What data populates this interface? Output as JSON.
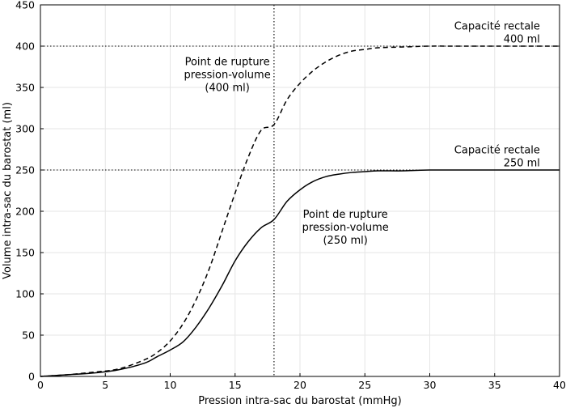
{
  "chart_data": {
    "type": "line",
    "xlabel": "Pression intra-sac du barostat (mmHg)",
    "ylabel": "Volume intra-sac du barostat (ml)",
    "xlim": [
      0,
      40
    ],
    "ylim": [
      0,
      450
    ],
    "xticks": [
      0,
      5,
      10,
      15,
      20,
      25,
      30,
      35,
      40
    ],
    "yticks": [
      0,
      50,
      100,
      150,
      200,
      250,
      300,
      350,
      400,
      450
    ],
    "grid": true,
    "series": [
      {
        "style": "dashed",
        "color": "#000000",
        "x": [
          0,
          2,
          4,
          6,
          8,
          9,
          10,
          11,
          12,
          13,
          14,
          15,
          16,
          17,
          18,
          19,
          20,
          21,
          22,
          23,
          24,
          25,
          26,
          28,
          30,
          32,
          35,
          40
        ],
        "y": [
          0,
          2,
          5,
          9,
          20,
          29,
          43,
          64,
          93,
          130,
          176,
          222,
          265,
          298,
          305,
          335,
          355,
          370,
          381,
          389,
          394,
          396,
          398,
          399,
          400,
          400,
          400,
          400
        ]
      },
      {
        "style": "solid",
        "color": "#000000",
        "x": [
          0,
          2,
          4,
          6,
          8,
          9,
          10,
          11,
          12,
          13,
          14,
          15,
          16,
          17,
          18,
          19,
          20,
          21,
          22,
          23,
          24,
          25,
          26,
          28,
          30,
          35,
          40
        ],
        "y": [
          0,
          2,
          4,
          8,
          16,
          24,
          32,
          42,
          60,
          83,
          110,
          140,
          163,
          180,
          190,
          212,
          226,
          236,
          242,
          245,
          247,
          248,
          249,
          249,
          250,
          250,
          250
        ]
      }
    ],
    "reference_lines": [
      {
        "orientation": "horizontal",
        "value": 400,
        "style": "dotted"
      },
      {
        "orientation": "horizontal",
        "value": 250,
        "style": "dotted"
      },
      {
        "orientation": "vertical",
        "value": 18,
        "style": "dotted"
      }
    ],
    "annotations": [
      {
        "lines": [
          "Capacité rectale",
          "400 ml"
        ],
        "x": 38.5,
        "y": 420,
        "align": "end"
      },
      {
        "lines": [
          "Point de rupture",
          "pression-volume",
          "(400 ml)"
        ],
        "x": 14.4,
        "y": 377,
        "align": "middle"
      },
      {
        "lines": [
          "Capacité rectale",
          "250 ml"
        ],
        "x": 38.5,
        "y": 270,
        "align": "end"
      },
      {
        "lines": [
          "Point de rupture",
          "pression-volume",
          "(250 ml)"
        ],
        "x": 23.5,
        "y": 192,
        "align": "middle"
      }
    ]
  }
}
